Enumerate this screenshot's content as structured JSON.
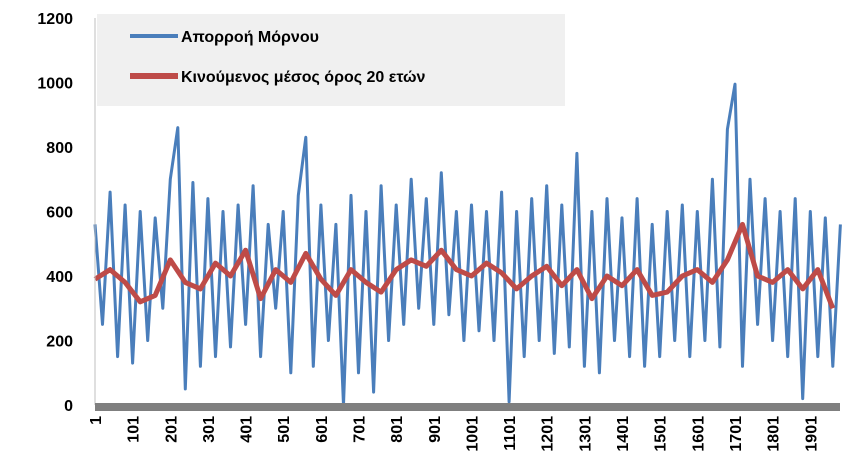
{
  "chart_data": {
    "type": "line",
    "series": [
      {
        "name": "Απορροή Μόρνου",
        "color": "#4a7ebb",
        "x": [
          1,
          21,
          41,
          61,
          81,
          101,
          121,
          141,
          161,
          181,
          201,
          221,
          241,
          261,
          281,
          301,
          321,
          341,
          361,
          381,
          401,
          421,
          441,
          461,
          481,
          501,
          521,
          541,
          561,
          581,
          601,
          621,
          641,
          661,
          681,
          701,
          721,
          741,
          761,
          781,
          801,
          821,
          841,
          861,
          881,
          901,
          921,
          941,
          961,
          981,
          1001,
          1021,
          1041,
          1061,
          1081,
          1101,
          1121,
          1141,
          1161,
          1181,
          1201,
          1221,
          1241,
          1261,
          1281,
          1301,
          1321,
          1341,
          1361,
          1381,
          1401,
          1421,
          1441,
          1461,
          1481,
          1501,
          1521,
          1541,
          1561,
          1581,
          1601,
          1621,
          1641,
          1661,
          1681,
          1701,
          1721,
          1741,
          1761,
          1781,
          1801,
          1821,
          1841,
          1861,
          1881,
          1901,
          1921,
          1941,
          1961,
          1981
        ],
        "values": [
          560,
          250,
          660,
          150,
          620,
          130,
          600,
          200,
          580,
          300,
          700,
          860,
          50,
          690,
          120,
          640,
          150,
          600,
          180,
          620,
          250,
          680,
          150,
          560,
          300,
          600,
          100,
          650,
          830,
          120,
          620,
          200,
          560,
          0,
          650,
          100,
          600,
          40,
          680,
          200,
          620,
          250,
          700,
          300,
          640,
          250,
          720,
          280,
          600,
          200,
          620,
          230,
          600,
          200,
          660,
          10,
          600,
          150,
          640,
          200,
          680,
          160,
          620,
          180,
          780,
          120,
          600,
          100,
          640,
          200,
          580,
          150,
          640,
          120,
          560,
          150,
          600,
          200,
          620,
          150,
          600,
          200,
          700,
          180,
          855,
          995,
          120,
          700,
          250,
          640,
          200,
          600,
          150,
          640,
          20,
          600,
          150,
          580,
          120,
          560
        ]
      },
      {
        "name": "Κινούμενος μέσος όρος 20 ετών",
        "color": "#be4b48",
        "x": [
          1,
          41,
          81,
          121,
          161,
          201,
          241,
          281,
          321,
          361,
          401,
          441,
          481,
          521,
          561,
          601,
          641,
          681,
          721,
          761,
          801,
          841,
          881,
          921,
          961,
          1001,
          1041,
          1081,
          1121,
          1161,
          1201,
          1241,
          1281,
          1321,
          1361,
          1401,
          1441,
          1481,
          1521,
          1561,
          1601,
          1641,
          1681,
          1721,
          1761,
          1801,
          1841,
          1881,
          1921,
          1961
        ],
        "values": [
          390,
          420,
          380,
          320,
          340,
          450,
          380,
          360,
          440,
          400,
          480,
          330,
          420,
          380,
          470,
          390,
          340,
          420,
          380,
          350,
          420,
          450,
          430,
          480,
          420,
          400,
          440,
          410,
          360,
          400,
          430,
          370,
          420,
          330,
          400,
          370,
          420,
          340,
          350,
          400,
          420,
          380,
          450,
          560,
          400,
          380,
          420,
          360,
          420,
          300
        ]
      }
    ],
    "xlim": [
      1,
      1980
    ],
    "xticks": [
      1,
      101,
      201,
      301,
      401,
      501,
      601,
      701,
      801,
      901,
      1001,
      1101,
      1201,
      1301,
      1401,
      1501,
      1601,
      1701,
      1801,
      1901
    ],
    "ylim": [
      0,
      1200
    ],
    "yticks": [
      0,
      200,
      400,
      600,
      800,
      1000,
      1200
    ]
  }
}
